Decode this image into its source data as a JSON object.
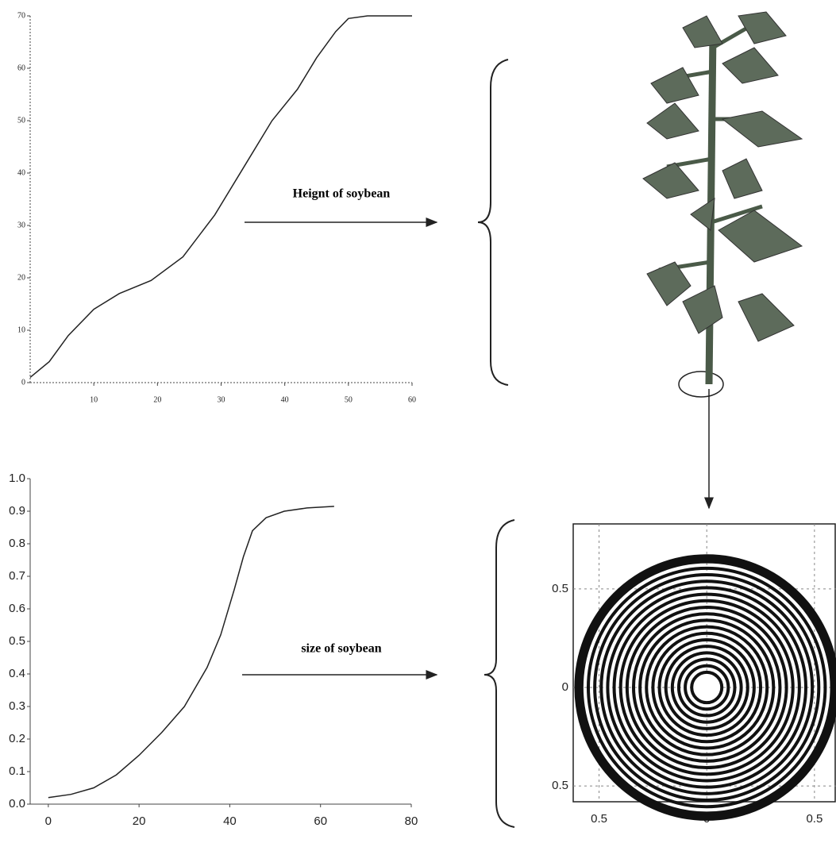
{
  "chart_data": [
    {
      "type": "line",
      "annotation": "Heignt of soybean",
      "x": [
        0,
        3,
        6,
        10,
        14,
        19,
        24,
        29,
        34,
        38,
        42,
        45,
        48,
        50,
        53,
        60
      ],
      "values": [
        1,
        4,
        9,
        14,
        17,
        19.5,
        24,
        32,
        42,
        50,
        56,
        62,
        67,
        69.5,
        70,
        70
      ],
      "color": "#222222",
      "xlim": [
        0,
        60
      ],
      "xticks": [
        10,
        20,
        30,
        40,
        50,
        60
      ],
      "ylim": [
        0,
        70
      ],
      "yticks": [
        0,
        10,
        20,
        30,
        40,
        50,
        60,
        70
      ]
    },
    {
      "type": "line",
      "annotation": "size of soybean",
      "x": [
        0,
        5,
        10,
        15,
        20,
        25,
        30,
        35,
        38,
        41,
        43,
        45,
        48,
        52,
        57,
        63
      ],
      "values": [
        0.02,
        0.03,
        0.05,
        0.09,
        0.15,
        0.22,
        0.3,
        0.42,
        0.52,
        0.66,
        0.76,
        0.84,
        0.88,
        0.9,
        0.91,
        0.915
      ],
      "color": "#222222",
      "xlim": [
        -4,
        80
      ],
      "xticks": [
        0,
        20,
        40,
        60,
        80
      ],
      "ylim": [
        0,
        1
      ],
      "yticks": [
        {
          "value": 0,
          "label": "0.0"
        },
        0.1,
        0.2,
        0.3,
        0.4,
        0.5,
        0.6,
        0.7,
        0.8,
        0.9,
        {
          "value": 1,
          "label": "1.0"
        }
      ]
    },
    {
      "type": "rings",
      "color": "#111111",
      "values": [
        0.07,
        0.1,
        0.13,
        0.16,
        0.19,
        0.22,
        0.25,
        0.28,
        0.31,
        0.34,
        0.37,
        0.4,
        0.43,
        0.46,
        0.49,
        0.52,
        0.55,
        0.58,
        0.6
      ],
      "xlim": [
        -0.62,
        0.6
      ],
      "xticks": [
        {
          "value": -0.5,
          "label": "0.5"
        },
        0,
        0.5
      ],
      "ylim": [
        -0.58,
        0.83
      ],
      "yticks": [
        {
          "value": -0.5,
          "label": "0.5"
        },
        0,
        0.5
      ],
      "grid": true
    }
  ]
}
